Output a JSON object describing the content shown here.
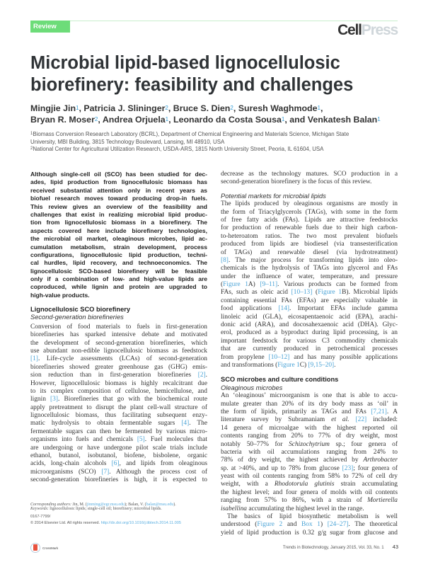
{
  "header": {
    "section_tag": "Review",
    "publisher_logo": {
      "part1": "Cell",
      "part2": "Press"
    }
  },
  "title": [
    "Microbial lipid-based lignocellulosic",
    "biorefinery: feasibility and challenges"
  ],
  "authors": [
    {
      "name": "Mingjie Jin",
      "aff": "1"
    },
    {
      "name": "Patricia J. Slininger",
      "aff": "2"
    },
    {
      "name": "Bruce S. Dien",
      "aff": "2"
    },
    {
      "name": "Suresh Waghmode",
      "aff": "1"
    },
    {
      "name": "Bryan R. Moser",
      "aff": "2"
    },
    {
      "name": "Andrea Orjuela",
      "aff": "1"
    },
    {
      "name": "Leonardo da Costa Sousa",
      "aff": "1"
    },
    {
      "name": "Venkatesh Balan",
      "aff": "1"
    }
  ],
  "author_connector": "and",
  "affiliations": [
    {
      "num": "1",
      "lines": [
        "Biomass Conversion Research Laboratory (BCRL), Department of Chemical Engineering and Materials Science, Michigan State",
        "University, MBI Building, 3815 Technology Boulevard, Lansing, MI 48910, USA"
      ]
    },
    {
      "num": "2",
      "lines": [
        "National Center for Agricultural Utilization Research, USDA-ARS, 1815 North University Street, Peoria, IL 61604, USA"
      ]
    }
  ],
  "abstract": [
    "Although single-cell oil (SCO) has been studied for dec-",
    "ades, lipid production from lignocellulosic biomass has",
    "received substantial attention only in recent years as",
    "biofuel research moves toward producing drop-in fuels.",
    "This review gives an overview of the feasibility and",
    "challenges that exist in realizing microbial lipid produc-",
    "tion from lignocellulosic biomass in a biorefinery. The",
    "aspects covered here include biorefinery technologies,",
    "the microbial oil market, oleaginous microbes, lipid ac-",
    "cumulation metabolism, strain development, process",
    "configurations, lignocellulosic lipid production, techni-",
    "cal hurdles, lipid recovery, and technoeconomics. The",
    "lignocellulosic SCO-based biorefinery will be feasible",
    "only if a combination of low- and high-value lipids are",
    "coproduced, while lignin and protein are upgraded to",
    "high-value products."
  ],
  "sections": {
    "s1_heading": "Lignocellulosic SCO biorefinery",
    "s1_sub": "Second-generation biorefineries",
    "s1_left": [
      "Conversion of food materials to fuels in first-generation",
      "biorefineries has sparked intensive debate and motivated",
      "the development of second-generation biorefineries, which",
      "use abundant non-edible lignocellulosic biomass as feedstock",
      "[1]. Life-cycle assessments (LCAs) of second-generation",
      "biorefineries showed greater greenhouse gas (GHG) emis-",
      "sion reduction than in first-generation biorefineries [2].",
      "However, lignocellulosic biomass is highly recalcitrant due",
      "to its complex composition of cellulose, hemicellulose, and",
      "lignin [3]. Biorefineries that go with the biochemical route",
      "apply pretreatment to disrupt the plant cell-wall structure of",
      "lignocellulosic biomass, thus facilitating subsequent enzy-",
      "matic hydrolysis to obtain fermentable sugars [4]. The",
      "fermentable sugars can then be fermented by various micro-",
      "organisms into fuels and chemicals [5]. Fuel molecules that",
      "are undergoing or have undergone pilot scale trials include",
      "ethanol, butanol, isobutanol, biofene, bisbolene, organic",
      "acids, long-chain alcohols [6], and lipids from oleaginous",
      "microorganisms (SCO) [7]. Although the process cost of",
      "second-generation biorefineries is high, it is expected to"
    ],
    "s1_right": [
      "decrease as the technology matures. SCO production in a",
      "second-generation biorefinery is the focus of this review."
    ],
    "s2_sub": "Potential markets for microbial lipids",
    "s2_para": [
      "The lipids produced by oleaginous organisms are mostly in",
      "the form of Triacylglycerols (TAGs), with some in the form",
      "of free fatty acids (FAs). Lipids are attractive feedstocks",
      "for production of renewable fuels due to their high carbon-",
      "to-heteroatom ratios. The two most prevalent biofuels",
      "produced from lipids are biodiesel (via transesterification",
      "of TAGs) and renewable diesel (via hydrotreatment)",
      "[8]. The major process for transforming lipids into oleo-",
      "chemicals is the hydrolysis of TAGs into glycerol and FAs",
      "under the influence of water, temperature, and pressure",
      "(Figure 1A) [9–11]. Various products can be formed from",
      "FAs, such as oleic acid [10–13] (Figure 1B). Microbial lipids",
      "containing essential FAs (EFAs) are especially valuable in",
      "food applications [14]. Important EFAs include gamma",
      "linoleic acid (GLA), eicosapentaenoic acid (EPA), arachi-",
      "donic acid (ARA), and docosahexaenoic acid (DHA). Glyc-",
      "erol, produced as a byproduct during lipid processing, is an",
      "important feedstock for various C3 commodity chemicals",
      "that are currently produced in petrochemical processes",
      "from propylene [10–12] and has many possible applications",
      "and transformations (Figure 1C) [9,15–20]."
    ],
    "s3_heading": "SCO microbes and culture conditions",
    "s3_sub": "Oleaginous microbes",
    "s3_para1": [
      "An ‘oleaginous’ microorganism is one that is able to accu-",
      "mulate greater than 20% of its dry body mass as ‘oil’ in",
      "the form of lipids, primarily as TAGs and FAs [7,21]. A",
      "literature survey by Subramaniam et al. [22] included:",
      "14 genera of microalgae with the highest reported oil",
      "contents ranging from 20% to 77% of dry weight, most",
      "notably 50–77% for Schizochytrium sp.; four genera of",
      "bacteria with oil accumulations ranging from 24% to",
      "78% of dry weight, the highest achieved by Arthrobacter",
      "sp. at >40%, and up to 78% from glucose [23]; four genera of",
      "yeast with oil contents ranging from 58% to 72% of cell dry",
      "weight, with a Rhodotorula glutinis strain accumulating",
      "the highest level; and four genera of molds with oil contents",
      "ranging from 57% to 86%, with a strain of Mortierella",
      "isabellina accumulating the highest level in the range."
    ],
    "s3_para2": [
      "The basics of lipid biosynthetic metabolism is well",
      "understood (Figure 2 and Box 1) [24–27]. The theoretical",
      "yield of lipid production is 0.32 g/g sugar from glucose and"
    ]
  },
  "footnotes": {
    "corresponding_label": "Corresponding authors:",
    "corresponding_1": "Jin, M. (",
    "email_1": "jinming@egr.msu.edu",
    "corresponding_2": "); Balan, V. (",
    "email_2": "balan@msu.edu",
    "corresponding_end": ").",
    "keywords_label": "Keywords:",
    "keywords": "lignocellulosic lipids; single-cell oil; biorefinery; microbial lipids.",
    "issn": "0167-7799/",
    "copyright": "© 2014 Elsevier Ltd. All rights reserved.",
    "doi": "http://dx.doi.org/10.1016/j.tibtech.2014.11.005",
    "crossmark": "CrossMark"
  },
  "page_footer": {
    "journal": "Trends in Biotechnology, January 2015, Vol. 33, No. 1",
    "page": "43"
  },
  "colors": {
    "tag_green": "#6ddc79",
    "link_blue": "#4aa3d6"
  }
}
